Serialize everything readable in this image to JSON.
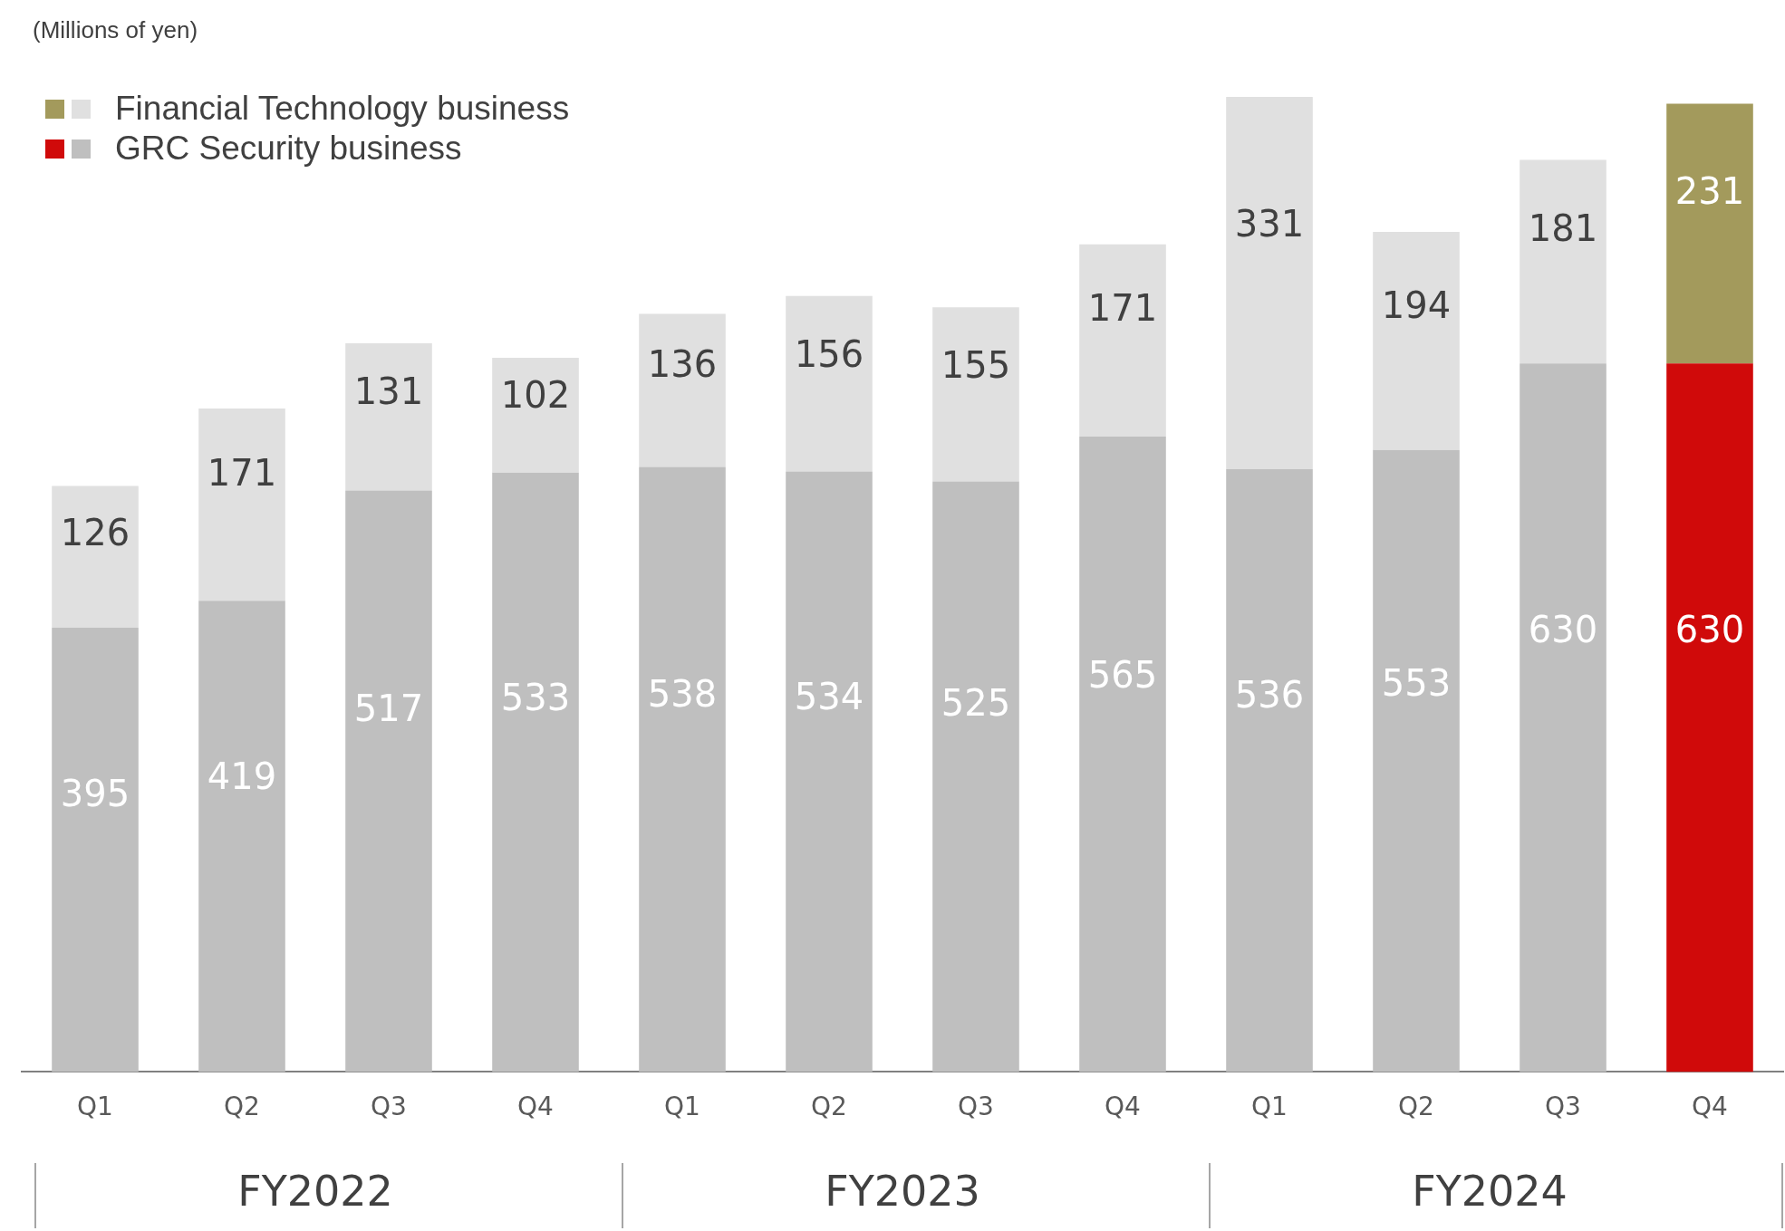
{
  "chart_data": {
    "type": "bar",
    "stacked": true,
    "ylabel": "(Millions of yen)",
    "legend": "top left",
    "data_labels": true,
    "grid": false,
    "categories": [
      "Q1",
      "Q2",
      "Q3",
      "Q4",
      "Q1",
      "Q2",
      "Q3",
      "Q4",
      "Q1",
      "Q2",
      "Q3",
      "Q4"
    ],
    "annotations": [
      "FY2022",
      "FY2023",
      "FY2024"
    ],
    "series": [
      {
        "name": "GRC Security business",
        "color": "#bfbfbf",
        "colors": [
          "#bfbfbf",
          "#bfbfbf",
          "#bfbfbf",
          "#bfbfbf",
          "#bfbfbf",
          "#bfbfbf",
          "#bfbfbf",
          "#bfbfbf",
          "#bfbfbf",
          "#bfbfbf",
          "#bfbfbf",
          "#d00a0a"
        ],
        "values": [
          395,
          419,
          517,
          533,
          538,
          534,
          525,
          565,
          536,
          553,
          630,
          630
        ]
      },
      {
        "name": "Financial Technology business",
        "color": "#e0e0e0",
        "colors": [
          "#e0e0e0",
          "#e0e0e0",
          "#e0e0e0",
          "#e0e0e0",
          "#e0e0e0",
          "#e0e0e0",
          "#e0e0e0",
          "#e0e0e0",
          "#e0e0e0",
          "#e0e0e0",
          "#e0e0e0",
          "#a39a5c"
        ],
        "values": [
          126,
          171,
          131,
          102,
          136,
          156,
          155,
          171,
          331,
          194,
          181,
          231
        ]
      }
    ]
  }
}
